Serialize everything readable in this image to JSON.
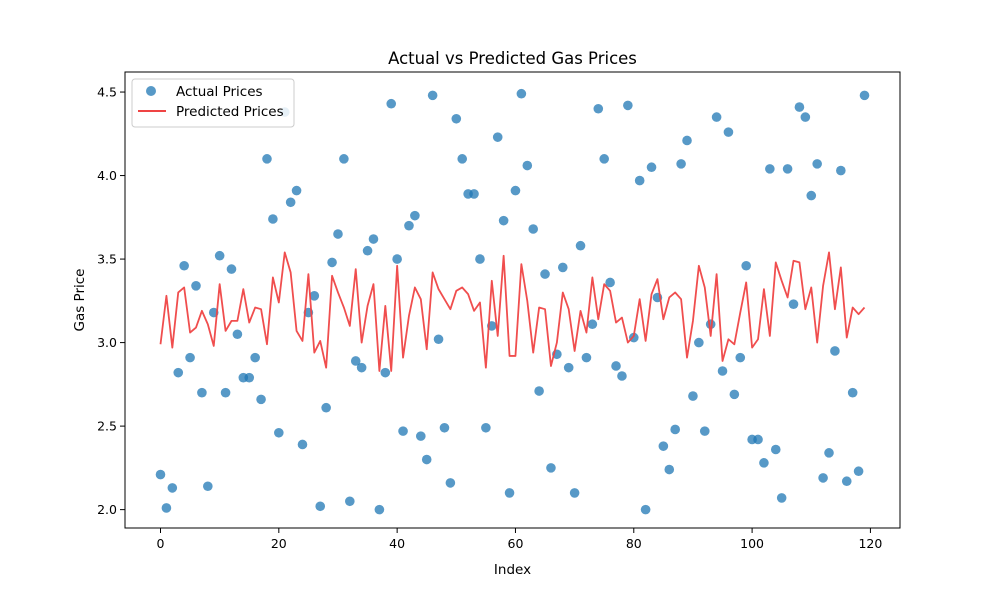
{
  "chart_data": {
    "type": "scatter",
    "title": "Actual vs Predicted Gas Prices",
    "xlabel": "Index",
    "ylabel": "Gas Price",
    "xlim": [
      -6,
      125
    ],
    "ylim": [
      1.89,
      4.62
    ],
    "xticks": [
      0,
      20,
      40,
      60,
      80,
      100,
      120
    ],
    "yticks": [
      2.0,
      2.5,
      3.0,
      3.5,
      4.0,
      4.5
    ],
    "grid": false,
    "legend_position": "top-left",
    "series": [
      {
        "name": "Actual Prices",
        "kind": "scatter",
        "color": "#1f77b4",
        "x": [
          0,
          1,
          2,
          3,
          4,
          5,
          6,
          7,
          8,
          9,
          10,
          11,
          12,
          13,
          14,
          15,
          16,
          17,
          18,
          19,
          20,
          21,
          22,
          23,
          24,
          25,
          26,
          27,
          28,
          29,
          30,
          31,
          32,
          33,
          34,
          35,
          36,
          37,
          38,
          39,
          40,
          41,
          42,
          43,
          44,
          45,
          46,
          47,
          48,
          49,
          50,
          51,
          52,
          53,
          54,
          55,
          56,
          57,
          58,
          59,
          60,
          61,
          62,
          63,
          64,
          65,
          66,
          67,
          68,
          69,
          70,
          71,
          72,
          73,
          74,
          75,
          76,
          77,
          78,
          79,
          80,
          81,
          82,
          83,
          84,
          85,
          86,
          87,
          88,
          89,
          90,
          91,
          92,
          93,
          94,
          95,
          96,
          97,
          98,
          99,
          100,
          101,
          102,
          103,
          104,
          105,
          106,
          107,
          108,
          109,
          110,
          111,
          112,
          113,
          114,
          115,
          116,
          117,
          118,
          119
        ],
        "y": [
          2.21,
          2.01,
          2.13,
          2.82,
          3.46,
          2.91,
          3.34,
          2.7,
          2.14,
          3.18,
          3.52,
          2.7,
          3.44,
          3.05,
          2.79,
          2.79,
          2.91,
          2.66,
          4.1,
          3.74,
          2.46,
          4.38,
          3.84,
          3.91,
          2.39,
          3.18,
          3.28,
          2.02,
          2.61,
          3.48,
          3.65,
          4.1,
          2.05,
          2.89,
          2.85,
          3.55,
          3.62,
          2.0,
          2.82,
          4.43,
          3.5,
          2.47,
          3.7,
          3.76,
          2.44,
          2.3,
          4.48,
          3.02,
          2.49,
          2.16,
          4.34,
          4.1,
          3.89,
          3.89,
          3.5,
          2.49,
          3.1,
          4.23,
          3.73,
          2.1,
          3.91,
          4.49,
          4.06,
          3.68,
          2.71,
          3.41,
          2.25,
          2.93,
          3.45,
          2.85,
          2.1,
          3.58,
          2.91,
          3.11,
          4.4,
          4.1,
          3.36,
          2.86,
          2.8,
          4.42,
          3.03,
          3.97,
          2.0,
          4.05,
          3.27,
          2.38,
          2.24,
          2.48,
          4.07,
          4.21,
          2.68,
          3.0,
          2.47,
          3.11,
          4.35,
          2.83,
          4.26,
          2.69,
          2.91,
          3.46,
          2.42,
          2.42,
          2.28,
          4.04,
          2.36,
          2.07,
          4.04,
          3.23,
          4.41,
          4.35,
          3.88,
          4.07,
          2.19,
          2.34,
          2.95,
          4.03,
          2.17,
          2.7,
          2.23,
          4.48
        ]
      },
      {
        "name": "Predicted Prices",
        "kind": "line",
        "color": "#ef4444",
        "x": [
          0,
          1,
          2,
          3,
          4,
          5,
          6,
          7,
          8,
          9,
          10,
          11,
          12,
          13,
          14,
          15,
          16,
          17,
          18,
          19,
          20,
          21,
          22,
          23,
          24,
          25,
          26,
          27,
          28,
          29,
          30,
          31,
          32,
          33,
          34,
          35,
          36,
          37,
          38,
          39,
          40,
          41,
          42,
          43,
          44,
          45,
          46,
          47,
          48,
          49,
          50,
          51,
          52,
          53,
          54,
          55,
          56,
          57,
          58,
          59,
          60,
          61,
          62,
          63,
          64,
          65,
          66,
          67,
          68,
          69,
          70,
          71,
          72,
          73,
          74,
          75,
          76,
          77,
          78,
          79,
          80,
          81,
          82,
          83,
          84,
          85,
          86,
          87,
          88,
          89,
          90,
          91,
          92,
          93,
          94,
          95,
          96,
          97,
          98,
          99,
          100,
          101,
          102,
          103,
          104,
          105,
          106,
          107,
          108,
          109,
          110,
          111,
          112,
          113,
          114,
          115,
          116,
          117,
          118,
          119
        ],
        "y": [
          2.99,
          3.28,
          2.97,
          3.3,
          3.33,
          3.06,
          3.09,
          3.19,
          3.11,
          2.98,
          3.35,
          3.07,
          3.13,
          3.13,
          3.32,
          3.12,
          3.21,
          3.2,
          2.99,
          3.39,
          3.24,
          3.54,
          3.42,
          3.07,
          3.01,
          3.41,
          2.94,
          3.01,
          2.85,
          3.4,
          3.3,
          3.21,
          3.1,
          3.44,
          3.0,
          3.22,
          3.35,
          2.83,
          3.22,
          2.83,
          3.46,
          2.91,
          3.16,
          3.33,
          3.26,
          2.96,
          3.42,
          3.32,
          3.26,
          3.2,
          3.31,
          3.33,
          3.29,
          3.19,
          3.24,
          2.85,
          3.37,
          3.04,
          3.52,
          2.92,
          2.92,
          3.47,
          3.25,
          2.94,
          3.21,
          3.2,
          2.86,
          3.0,
          3.3,
          3.2,
          2.95,
          3.19,
          3.06,
          3.39,
          3.14,
          3.35,
          3.31,
          3.12,
          3.15,
          3.0,
          3.04,
          3.26,
          3.01,
          3.29,
          3.38,
          3.14,
          3.27,
          3.3,
          3.26,
          2.91,
          3.13,
          3.46,
          3.33,
          3.04,
          3.41,
          2.89,
          3.02,
          2.99,
          3.18,
          3.36,
          2.97,
          3.02,
          3.32,
          3.04,
          3.48,
          3.37,
          3.27,
          3.49,
          3.48,
          3.2,
          3.33,
          3.0,
          3.34,
          3.54,
          3.2,
          3.45,
          3.03,
          3.21,
          3.17,
          3.21
        ]
      }
    ]
  }
}
